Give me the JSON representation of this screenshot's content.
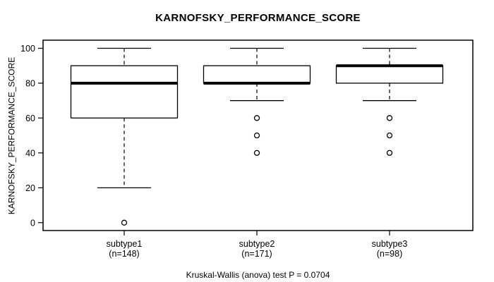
{
  "title": "KARNOFSKY_PERFORMANCE_SCORE",
  "caption": "Kruskal-Wallis (anova) test P = 0.0704",
  "chart_data": {
    "type": "boxplot",
    "title": "KARNOFSKY_PERFORMANCE_SCORE",
    "ylabel": "KARNOFSKY_PERFORMANCE_SCORE",
    "xlabel": "",
    "ylim": [
      0,
      100
    ],
    "y_ticks": [
      0,
      20,
      40,
      60,
      80,
      100
    ],
    "grid": false,
    "caption": "Kruskal-Wallis (anova) test P = 0.0704",
    "groups": [
      {
        "label": "subtype1",
        "sublabel": "(n=148)",
        "n": 148,
        "whisker_low": 20,
        "q1": 60,
        "median": 80,
        "q3": 90,
        "whisker_high": 100,
        "outliers": [
          0
        ]
      },
      {
        "label": "subtype2",
        "sublabel": "(n=171)",
        "n": 171,
        "whisker_low": 70,
        "q1": 80,
        "median": 80,
        "q3": 90,
        "whisker_high": 100,
        "outliers": [
          60,
          50,
          40
        ]
      },
      {
        "label": "subtype3",
        "sublabel": "(n=98)",
        "n": 98,
        "whisker_low": 70,
        "q1": 80,
        "median": 90,
        "q3": 90,
        "whisker_high": 100,
        "outliers": [
          60,
          50,
          40
        ]
      }
    ],
    "colors": {
      "line": "#000000",
      "box_fill": "#ffffff",
      "background": "#ffffff"
    }
  }
}
